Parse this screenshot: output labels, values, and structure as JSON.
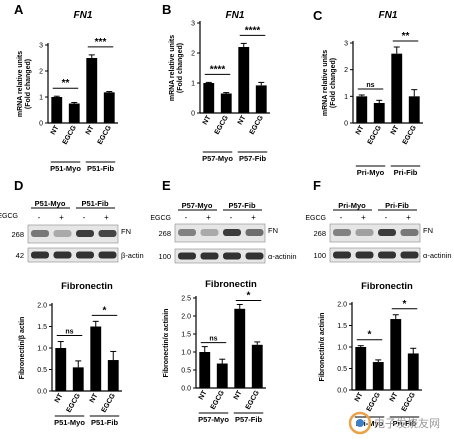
{
  "panel_letters": [
    "A",
    "B",
    "C",
    "D",
    "E",
    "F"
  ],
  "bar_color": "#000000",
  "figure_text": {
    "mrna_ylabel_1": "mRNA relative units",
    "mrna_ylabel_2": "(Fold changed)",
    "fn_label": "FN",
    "egcg_label": "EGCG",
    "minus": "-",
    "plus": "+",
    "fibronectin_title": "Fibronectin",
    "watermark": "电子发烧友网"
  },
  "chart_data": [
    {
      "panel": "A",
      "type": "bar",
      "title": "FN1",
      "ylabel": "mRNA relative units (Fold changed)",
      "ylim": [
        0,
        3
      ],
      "yticks": [
        "0",
        "1",
        "2",
        "3"
      ],
      "categories": [
        "NT",
        "EGCG",
        "NT",
        "EGCG"
      ],
      "groups": [
        "P51-Myo",
        "P51-Fib"
      ],
      "values": [
        1.0,
        0.75,
        2.5,
        1.18
      ],
      "errors": [
        0.03,
        0.04,
        0.12,
        0.03
      ],
      "significance": [
        {
          "pair": [
            0,
            1
          ],
          "label": "**"
        },
        {
          "pair": [
            2,
            3
          ],
          "label": "***"
        }
      ]
    },
    {
      "panel": "B",
      "type": "bar",
      "title": "FN1",
      "ylabel": "mRNA relative units (Fold changed)",
      "ylim": [
        0,
        3
      ],
      "yticks": [
        "0",
        "1",
        "2",
        "3"
      ],
      "categories": [
        "NT",
        "EGCG",
        "NT",
        "EGCG"
      ],
      "groups": [
        "P57-Myo",
        "P57-Fib"
      ],
      "values": [
        1.0,
        0.65,
        2.2,
        0.92
      ],
      "errors": [
        0.02,
        0.03,
        0.12,
        0.1
      ],
      "significance": [
        {
          "pair": [
            0,
            1
          ],
          "label": "****"
        },
        {
          "pair": [
            2,
            3
          ],
          "label": "****"
        }
      ]
    },
    {
      "panel": "C",
      "type": "bar",
      "title": "FN1",
      "ylabel": "mRNA relative units (Fold changed)",
      "ylim": [
        0,
        3
      ],
      "yticks": [
        "0",
        "1",
        "2",
        "3"
      ],
      "categories": [
        "NT",
        "EGCG",
        "NT",
        "EGCG"
      ],
      "groups": [
        "Pri-Myo",
        "Pri-Fib"
      ],
      "values": [
        1.0,
        0.75,
        2.6,
        1.0
      ],
      "errors": [
        0.05,
        0.1,
        0.25,
        0.25
      ],
      "significance": [
        {
          "pair": [
            0,
            1
          ],
          "label": "ns"
        },
        {
          "pair": [
            2,
            3
          ],
          "label": "**"
        }
      ]
    },
    {
      "panel": "D",
      "type": "bar",
      "title": "Fibronectin",
      "ylabel": "Fibronectin/β actin",
      "ylim": [
        0,
        2
      ],
      "yticks": [
        "0.0",
        "0.5",
        "1.0",
        "1.5",
        "2.0"
      ],
      "categories": [
        "NT",
        "EGCG",
        "NT",
        "EGCG"
      ],
      "groups": [
        "P51-Myo",
        "P51-Fib"
      ],
      "values": [
        1.0,
        0.55,
        1.5,
        0.72
      ],
      "errors": [
        0.15,
        0.15,
        0.12,
        0.2
      ],
      "significance": [
        {
          "pair": [
            0,
            1
          ],
          "label": "ns"
        },
        {
          "pair": [
            2,
            3
          ],
          "label": "*"
        }
      ]
    },
    {
      "panel": "E",
      "type": "bar",
      "title": "Fibronectin",
      "ylabel": "Fibronectin/α actinin",
      "ylim": [
        0,
        2.5
      ],
      "yticks": [
        "0.0",
        "0.5",
        "1.0",
        "1.5",
        "2.0",
        "2.5"
      ],
      "categories": [
        "NT",
        "EGCG",
        "NT",
        "EGCG"
      ],
      "groups": [
        "P57-Myo",
        "P57-Fib"
      ],
      "values": [
        1.0,
        0.68,
        2.2,
        1.2
      ],
      "errors": [
        0.15,
        0.12,
        0.12,
        0.08
      ],
      "significance": [
        {
          "pair": [
            0,
            1
          ],
          "label": "ns"
        },
        {
          "pair": [
            2,
            3
          ],
          "label": "*"
        }
      ]
    },
    {
      "panel": "F",
      "type": "bar",
      "title": "Fibronectin",
      "ylabel": "Fibronectin/α actinin",
      "ylim": [
        0,
        2
      ],
      "yticks": [
        "0.0",
        "0.5",
        "1.0",
        "1.5",
        "2.0"
      ],
      "categories": [
        "NT",
        "EGCG",
        "NT",
        "EGCG"
      ],
      "groups": [
        "Pri-Myo",
        "Pri-Fib"
      ],
      "values": [
        1.0,
        0.65,
        1.65,
        0.85
      ],
      "errors": [
        0.03,
        0.05,
        0.1,
        0.12
      ],
      "significance": [
        {
          "pair": [
            0,
            1
          ],
          "label": "*"
        },
        {
          "pair": [
            2,
            3
          ],
          "label": "*"
        }
      ]
    }
  ],
  "blots": [
    {
      "panel": "D",
      "groups": [
        "P51-Myo",
        "P51-Fib"
      ],
      "top_marker": "268",
      "bottom_marker": "42",
      "top_label": "FN",
      "bottom_label": "β-actin",
      "fn_intensity": [
        0.55,
        0.3,
        0.85,
        0.8
      ],
      "control_intensity": [
        0.9,
        0.9,
        0.9,
        0.9
      ]
    },
    {
      "panel": "E",
      "groups": [
        "P57-Myo",
        "P57-Fib"
      ],
      "top_marker": "268",
      "bottom_marker": "100",
      "top_label": "FN",
      "bottom_label": "α-actinin",
      "fn_intensity": [
        0.5,
        0.3,
        0.85,
        0.6
      ],
      "control_intensity": [
        0.9,
        0.9,
        0.9,
        0.9
      ]
    },
    {
      "panel": "F",
      "groups": [
        "Pri-Myo",
        "Pri-Fib"
      ],
      "top_marker": "268",
      "bottom_marker": "100",
      "top_label": "FN",
      "bottom_label": "α-actinin",
      "fn_intensity": [
        0.5,
        0.35,
        0.85,
        0.55
      ],
      "control_intensity": [
        0.9,
        0.9,
        0.9,
        0.9
      ]
    }
  ]
}
